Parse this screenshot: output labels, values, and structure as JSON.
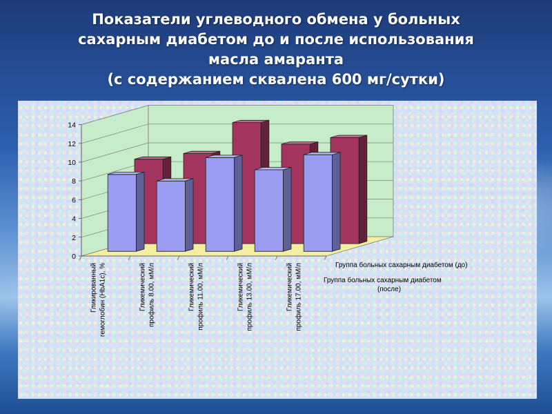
{
  "title_lines": [
    "Показатели углеводного обмена у больных",
    "сахарным диабетом до и после использования",
    "масла амаранта",
    "(с содержанием сквалена 600 мг/сутки)"
  ],
  "colors": {
    "before": "#a3345e",
    "after": "#9a9cf2",
    "floor": "#f2f0a0",
    "walls": "#c7ecc9"
  },
  "chart_data": {
    "type": "bar",
    "categories": [
      [
        "Гликированный",
        "гемоглобин (HbA1c), %"
      ],
      [
        "Гликемический",
        "профиль 8.00, мМ/л"
      ],
      [
        "Гликемический",
        "профиль 11.00, мМ/л"
      ],
      [
        "Гликемический",
        "профиль 13.00, мМ/л"
      ],
      [
        "Гликемический",
        "профиль 17.00, мМ/л"
      ]
    ],
    "series": [
      {
        "name": "Группа больных сахарным диабетом (до)",
        "values": [
          9.0,
          9.6,
          12.9,
          10.6,
          11.3
        ]
      },
      {
        "name": "Группа больных сахарным диабетом (после)",
        "values": [
          8.2,
          7.5,
          10.0,
          8.7,
          10.3
        ]
      }
    ],
    "y_ticks": [
      "0",
      "2",
      "4",
      "6",
      "8",
      "10",
      "12",
      "14"
    ],
    "ylim": [
      0,
      14
    ],
    "series_axis_labels": [
      [
        "Группа больных сахарным диабетом (до)"
      ],
      [
        "Группа больных сахарным диабетом",
        "(после)"
      ]
    ],
    "legend": "none",
    "grid": true
  }
}
